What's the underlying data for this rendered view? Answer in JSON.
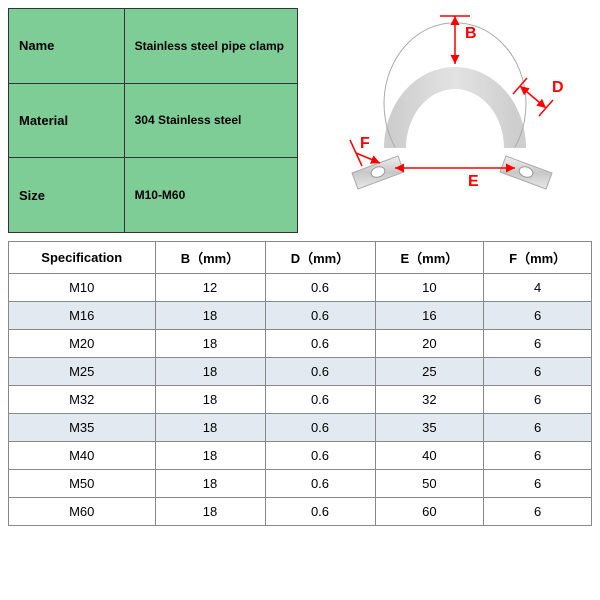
{
  "info_table": {
    "background_color": "#7fcd96",
    "border_color": "#333333",
    "rows": [
      {
        "label": "Name",
        "value": "Stainless steel pipe clamp"
      },
      {
        "label": "Material",
        "value": "304 Stainless steel"
      },
      {
        "label": "Size",
        "value": "M10-M60"
      }
    ]
  },
  "diagram": {
    "label_B": "B",
    "label_D": "D",
    "label_E": "E",
    "label_F": "F",
    "line_color": "#ff0000",
    "metal_color_light": "#e0e0e0",
    "metal_color_dark": "#b8b8b8"
  },
  "spec_table": {
    "type": "table",
    "alt_row_color": "#e3e9f0",
    "border_color": "#888888",
    "columns": [
      "Specification",
      "B（mm）",
      "D（mm）",
      "E（mm）",
      "F（mm）"
    ],
    "rows": [
      [
        "M10",
        "12",
        "0.6",
        "10",
        "4"
      ],
      [
        "M16",
        "18",
        "0.6",
        "16",
        "6"
      ],
      [
        "M20",
        "18",
        "0.6",
        "20",
        "6"
      ],
      [
        "M25",
        "18",
        "0.6",
        "25",
        "6"
      ],
      [
        "M32",
        "18",
        "0.6",
        "32",
        "6"
      ],
      [
        "M35",
        "18",
        "0.6",
        "35",
        "6"
      ],
      [
        "M40",
        "18",
        "0.6",
        "40",
        "6"
      ],
      [
        "M50",
        "18",
        "0.6",
        "50",
        "6"
      ],
      [
        "M60",
        "18",
        "0.6",
        "60",
        "6"
      ]
    ],
    "alt_row_indices": [
      1,
      3,
      5
    ]
  }
}
